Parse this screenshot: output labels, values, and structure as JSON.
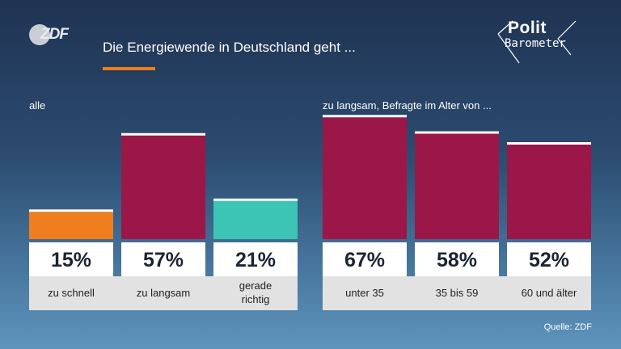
{
  "header": {
    "logo": "ZDF",
    "title": "Die Energiewende in Deutschland geht ...",
    "brand_top": "Polit",
    "brand_bottom": "Barometer"
  },
  "sections": {
    "all_label": "alle",
    "age_label": "zu langsam, Befragte im Alter von ..."
  },
  "source": "Quelle: ZDF",
  "colors": {
    "orange": "#f07d1e",
    "crimson": "#9b1748",
    "teal": "#3cc4b4",
    "value_box": "#ffffff",
    "label_box": "#e2e2e2"
  },
  "chart_data": {
    "type": "bar",
    "title": "Die Energiewende in Deutschland geht ...",
    "unit": "%",
    "ylim": [
      0,
      70
    ],
    "groups": [
      {
        "label": "alle",
        "bars": [
          {
            "category": "zu schnell",
            "value": 15,
            "display": "15%",
            "color": "#f07d1e"
          },
          {
            "category": "zu langsam",
            "value": 57,
            "display": "57%",
            "color": "#9b1748"
          },
          {
            "category": "gerade richtig",
            "value": 21,
            "display": "21%",
            "color": "#3cc4b4"
          }
        ]
      },
      {
        "label": "zu langsam, Befragte im Alter von ...",
        "bars": [
          {
            "category": "unter 35",
            "value": 67,
            "display": "67%",
            "color": "#9b1748"
          },
          {
            "category": "35 bis 59",
            "value": 58,
            "display": "58%",
            "color": "#9b1748"
          },
          {
            "category": "60 und älter",
            "value": 52,
            "display": "52%",
            "color": "#9b1748"
          }
        ]
      }
    ]
  }
}
